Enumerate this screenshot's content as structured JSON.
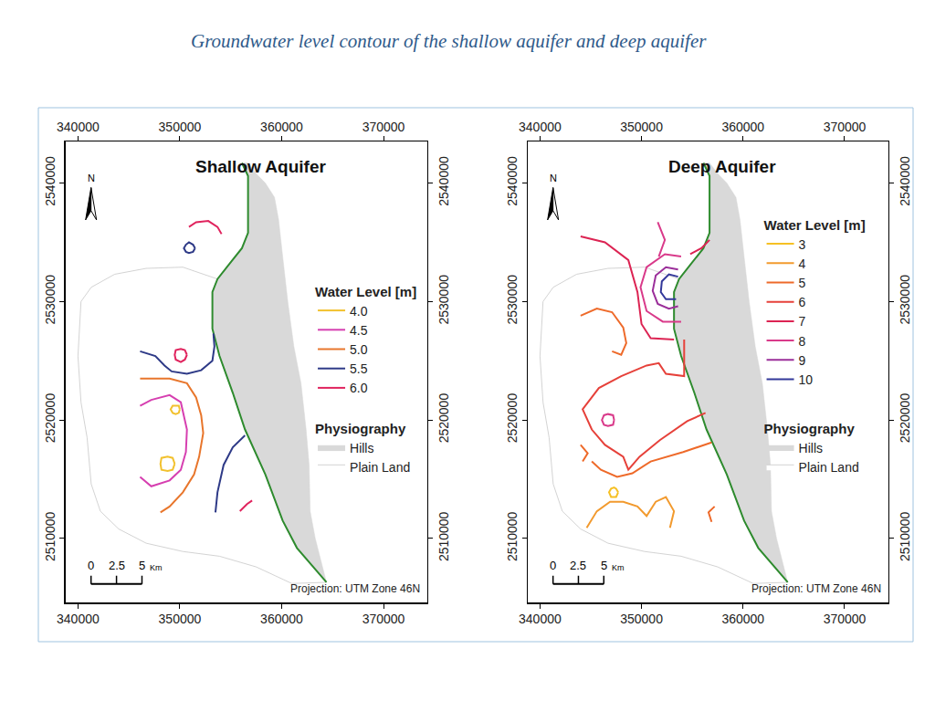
{
  "title": "Groundwater level contour of the shallow aquifer and deep aquifer",
  "base_map": {
    "plain_land": {
      "name": "Plain Land",
      "color": "#ffffff",
      "x": [
        353700,
        350300,
        346700,
        343600,
        341300,
        340300,
        340000,
        340300,
        340900,
        341300,
        342200,
        344000,
        346700,
        350300,
        353900,
        357500,
        361000,
        364400,
        361500,
        360100,
        358400,
        356400,
        355200,
        353900,
        353200,
        353200,
        353700
      ],
      "y": [
        2531900,
        2532900,
        2532800,
        2532300,
        2531200,
        2530000,
        2525400,
        2521500,
        2518500,
        2514600,
        2512300,
        2510800,
        2509600,
        2508900,
        2508500,
        2507600,
        2506200,
        2506300,
        2509200,
        2511500,
        2515400,
        2519200,
        2522300,
        2525400,
        2527700,
        2530800,
        2531900
      ]
    },
    "hills": {
      "name": "Hills",
      "color": "#d9d9d9",
      "x": [
        356100,
        356700,
        356700,
        356100,
        354800,
        353700,
        353200,
        353200,
        353900,
        355200,
        356400,
        358400,
        360100,
        361500,
        364400,
        363300,
        362800,
        362700,
        362400,
        361900,
        361200,
        360600,
        360100,
        359700,
        359300,
        358400,
        357500,
        356700,
        356100
      ],
      "y": [
        2541700,
        2540600,
        2535800,
        2534500,
        2533100,
        2531900,
        2530800,
        2527700,
        2525400,
        2522300,
        2519200,
        2515400,
        2511500,
        2509200,
        2506300,
        2510000,
        2512300,
        2516200,
        2519200,
        2523100,
        2526200,
        2530000,
        2533800,
        2536900,
        2538800,
        2540000,
        2540800,
        2541700,
        2541700
      ]
    },
    "boundary": {
      "color": "#2e8b2e",
      "x": [
        356100,
        356700,
        356700,
        356100,
        354800,
        353700,
        353200,
        353200,
        353900,
        355200,
        356400,
        358400,
        360100,
        361500,
        364400
      ],
      "y": [
        2541700,
        2540600,
        2535800,
        2534500,
        2533100,
        2531900,
        2530800,
        2527700,
        2525400,
        2522300,
        2519200,
        2515400,
        2511500,
        2509200,
        2506300
      ]
    }
  },
  "chart_data": [
    {
      "type": "line",
      "title": "Shallow Aquifer",
      "xlim": [
        338800,
        374300
      ],
      "ylim": [
        2504600,
        2543500
      ],
      "xticks": [
        340000,
        350000,
        360000,
        370000
      ],
      "yticks": [
        2510000,
        2520000,
        2530000,
        2540000
      ],
      "grid": false,
      "legend_title": "Water Level [m]",
      "physiography_title": "Physiography",
      "north_label": "N",
      "scale_bar": {
        "ticks": [
          0,
          2.5,
          5
        ],
        "unit": "Km"
      },
      "note": "Projection: UTM Zone 46N",
      "series": [
        {
          "name": "4.0",
          "color": "#f2c12e",
          "x": [
            350000,
            349900,
            349600,
            349300,
            349100,
            349300,
            349600,
            349900,
            350000,
            null,
            349500,
            349300,
            348800,
            348200,
            348100,
            348200,
            348800,
            349300,
            349500
          ],
          "y": [
            2520900,
            2520600,
            2520500,
            2520600,
            2520900,
            2521200,
            2521200,
            2521200,
            2520900,
            null,
            2516300,
            2515800,
            2515700,
            2515800,
            2516300,
            2516800,
            2516900,
            2516800,
            2516300
          ]
        },
        {
          "name": "4.5",
          "color": "#d63fb0",
          "x": [
            346100,
            347200,
            349000,
            350100,
            350700,
            350600,
            350100,
            349000,
            347200,
            346100
          ],
          "y": [
            2521200,
            2521700,
            2522100,
            2521500,
            2519200,
            2517300,
            2515800,
            2514900,
            2514400,
            2515200
          ]
        },
        {
          "name": "5.0",
          "color": "#e8762c",
          "x": [
            346100,
            349000,
            350700,
            351600,
            352100,
            352300,
            351900,
            351400,
            350300,
            349000,
            348100
          ],
          "y": [
            2523500,
            2523500,
            2523100,
            2521900,
            2520400,
            2518900,
            2516900,
            2515400,
            2513900,
            2512700,
            2512200
          ]
        },
        {
          "name": "5.5",
          "color": "#2e3a87",
          "x": [
            351500,
            351300,
            350900,
            350600,
            350400,
            350600,
            350900,
            351300,
            351500,
            null,
            346100,
            347600,
            348500,
            349200,
            350700,
            352100,
            353200,
            353400,
            353300,
            null,
            353500,
            353700,
            354300,
            355200,
            356400
          ],
          "y": [
            2534500,
            2534200,
            2534100,
            2534200,
            2534500,
            2534800,
            2535000,
            2534800,
            2534500,
            null,
            2525800,
            2525400,
            2524600,
            2524100,
            2523900,
            2524200,
            2525000,
            2526200,
            2527300,
            null,
            2512200,
            2513900,
            2516200,
            2517700,
            2518700
          ]
        },
        {
          "name": "6.0",
          "color": "#e0245e",
          "x": [
            350900,
            351600,
            352800,
            353700,
            354100,
            null,
            350700,
            350500,
            350100,
            349600,
            349500,
            349600,
            350100,
            350500,
            350700,
            null,
            355900,
            356600,
            357100
          ],
          "y": [
            2536300,
            2536700,
            2536800,
            2536300,
            2535700,
            null,
            2525500,
            2525100,
            2524900,
            2525100,
            2525500,
            2525900,
            2526000,
            2525900,
            2525500,
            null,
            2512300,
            2512900,
            2513200
          ]
        }
      ]
    },
    {
      "type": "line",
      "title": "Deep Aquifer",
      "xlim": [
        338800,
        374300
      ],
      "ylim": [
        2504600,
        2543500
      ],
      "xticks": [
        340000,
        350000,
        360000,
        370000
      ],
      "yticks": [
        2510000,
        2520000,
        2530000,
        2540000
      ],
      "grid": false,
      "legend_title": "Water Level [m]",
      "physiography_title": "Physiography",
      "north_label": "N",
      "scale_bar": {
        "ticks": [
          0,
          2.5,
          5
        ],
        "unit": "Km"
      },
      "note": "Projection: UTM Zone 46N",
      "series": [
        {
          "name": "3",
          "color": "#f6c024",
          "x": [
            347700,
            347500,
            347300,
            347000,
            346800,
            347000,
            347300,
            347500,
            347700
          ],
          "y": [
            2513900,
            2513500,
            2513500,
            2513500,
            2513900,
            2514200,
            2514300,
            2514200,
            2513900
          ]
        },
        {
          "name": "4",
          "color": "#f29a2e",
          "x": [
            344600,
            345600,
            346900,
            348200,
            349600,
            350500,
            351400,
            352400,
            353200,
            352800
          ],
          "y": [
            2510900,
            2512300,
            2513100,
            2513100,
            2512700,
            2511900,
            2513100,
            2513500,
            2512300,
            2510900
          ]
        },
        {
          "name": "5",
          "color": "#ee6a2a",
          "x": [
            344000,
            345600,
            347100,
            348200,
            348500,
            348000,
            347100,
            null,
            356900,
            354100,
            350900,
            349100,
            347600,
            346000,
            345100,
            null,
            344000,
            344700,
            344200,
            null,
            357200,
            356600,
            356900
          ],
          "y": [
            2528800,
            2529400,
            2529100,
            2527800,
            2526500,
            2525500,
            2525800,
            null,
            2518100,
            2517300,
            2516500,
            2515500,
            2515200,
            2515800,
            2516500,
            null,
            2517900,
            2517200,
            2516500,
            null,
            2512700,
            2512200,
            2511400
          ]
        },
        {
          "name": "6",
          "color": "#e6413a",
          "x": [
            354200,
            354200,
            352400,
            351700,
            350500,
            348000,
            345800,
            344200,
            345100,
            346400,
            348200,
            348700,
            349800,
            351800,
            354500,
            356300
          ],
          "y": [
            2526800,
            2523700,
            2523900,
            2524800,
            2524600,
            2523700,
            2522700,
            2520900,
            2519200,
            2517900,
            2516900,
            2515800,
            2516900,
            2518300,
            2519900,
            2520600
          ]
        },
        {
          "name": "7",
          "color": "#dc2453",
          "x": [
            344000,
            346400,
            348700,
            349600,
            350000,
            350900,
            353200,
            null,
            356700,
            355900,
            354800
          ],
          "y": [
            2535500,
            2535000,
            2533500,
            2530800,
            2528100,
            2526900,
            2526800,
            null,
            2535200,
            2534500,
            2534000
          ]
        },
        {
          "name": "8",
          "color": "#d93a8a",
          "x": [
            353900,
            352300,
            350500,
            349900,
            350500,
            352100,
            353900,
            null,
            347300,
            347200,
            346700,
            346300,
            346100,
            346300,
            346700,
            347200,
            347300,
            null,
            351600,
            352300,
            351700
          ],
          "y": [
            2533800,
            2534000,
            2532900,
            2531200,
            2529200,
            2528300,
            2528300,
            null,
            2520000,
            2519600,
            2519500,
            2519600,
            2520000,
            2520400,
            2520500,
            2520400,
            2520000,
            null,
            2536700,
            2535200,
            2533800
          ]
        },
        {
          "name": "9",
          "color": "#9b2f9a",
          "x": [
            353600,
            352400,
            351400,
            351100,
            351600,
            352700,
            353600
          ],
          "y": [
            2532700,
            2532900,
            2532200,
            2530900,
            2529800,
            2529400,
            2529600
          ]
        },
        {
          "name": "10",
          "color": "#33389a",
          "x": [
            353600,
            352700,
            352000,
            351900,
            352400,
            353400
          ],
          "y": [
            2532100,
            2532300,
            2531700,
            2530800,
            2530200,
            2530200
          ]
        }
      ]
    }
  ]
}
